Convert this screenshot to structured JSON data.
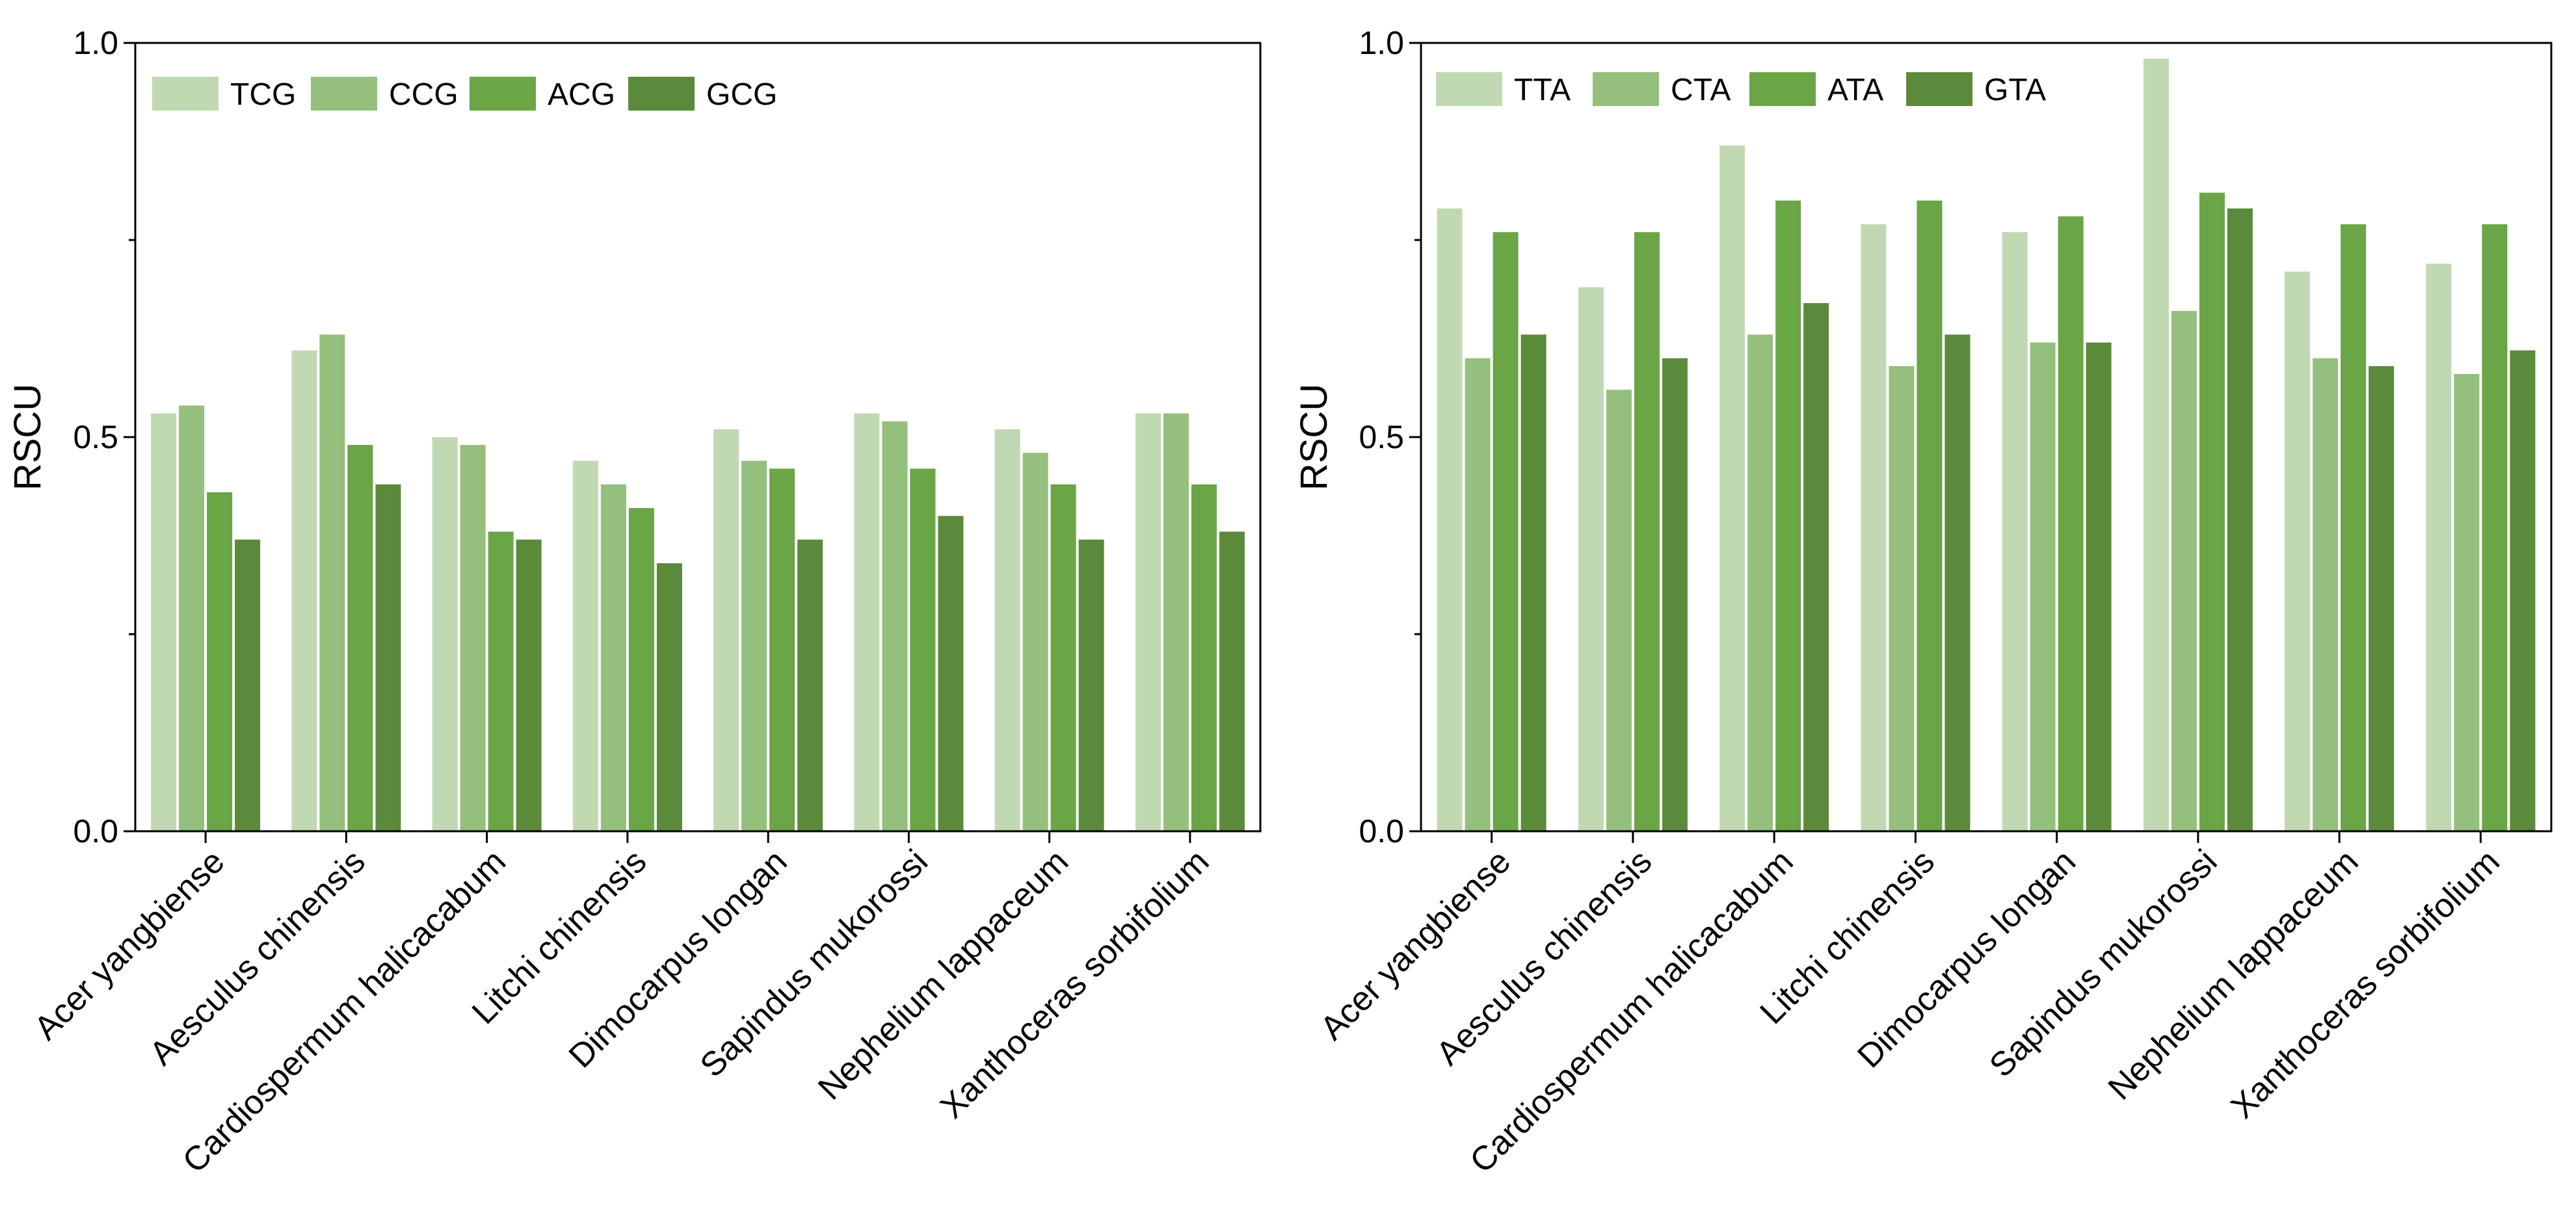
{
  "chart_data": [
    {
      "type": "bar",
      "ylabel": "RSCU",
      "xlabel": "",
      "title": "",
      "ylim": [
        0,
        1.0
      ],
      "yticks": [
        "0.0",
        "0.5",
        "1.0"
      ],
      "legend_position": "top-left",
      "categories": [
        "Acer yangbiense",
        "Aesculus chinensis",
        "Cardiospermum halicacabum",
        "Litchi chinensis",
        "Dimocarpus longan",
        "Sapindus mukorossi",
        "Nephelium lappaceum",
        "Xanthoceras sorbifolium"
      ],
      "series": [
        {
          "name": "TCG",
          "color": "#c0d9b3",
          "values": [
            0.53,
            0.61,
            0.5,
            0.47,
            0.51,
            0.53,
            0.51,
            0.53
          ]
        },
        {
          "name": "CCG",
          "color": "#94bf7c",
          "values": [
            0.54,
            0.63,
            0.49,
            0.44,
            0.47,
            0.52,
            0.48,
            0.53
          ]
        },
        {
          "name": "ACG",
          "color": "#6aa546",
          "values": [
            0.43,
            0.49,
            0.38,
            0.41,
            0.46,
            0.46,
            0.44,
            0.44
          ]
        },
        {
          "name": "GCG",
          "color": "#5b8a3a",
          "values": [
            0.37,
            0.44,
            0.37,
            0.34,
            0.37,
            0.4,
            0.37,
            0.38
          ]
        }
      ]
    },
    {
      "type": "bar",
      "ylabel": "RSCU",
      "xlabel": "",
      "title": "",
      "ylim": [
        0,
        1.0
      ],
      "yticks": [
        "0.0",
        "0.5",
        "1.0"
      ],
      "legend_position": "top-left",
      "categories": [
        "Acer yangbiense",
        "Aesculus chinensis",
        "Cardiospermum halicacabum",
        "Litchi chinensis",
        "Dimocarpus longan",
        "Sapindus mukorossi",
        "Nephelium lappaceum",
        "Xanthoceras sorbifolium"
      ],
      "series": [
        {
          "name": "TTA",
          "color": "#c0d9b3",
          "values": [
            0.79,
            0.69,
            0.87,
            0.77,
            0.76,
            0.98,
            0.71,
            0.72
          ]
        },
        {
          "name": "CTA",
          "color": "#94bf7c",
          "values": [
            0.6,
            0.56,
            0.63,
            0.59,
            0.62,
            0.66,
            0.6,
            0.58
          ]
        },
        {
          "name": "ATA",
          "color": "#6aa546",
          "values": [
            0.76,
            0.76,
            0.8,
            0.8,
            0.78,
            0.81,
            0.77,
            0.77
          ]
        },
        {
          "name": "GTA",
          "color": "#5b8a3a",
          "values": [
            0.63,
            0.6,
            0.67,
            0.63,
            0.62,
            0.79,
            0.59,
            0.61
          ]
        }
      ]
    }
  ]
}
